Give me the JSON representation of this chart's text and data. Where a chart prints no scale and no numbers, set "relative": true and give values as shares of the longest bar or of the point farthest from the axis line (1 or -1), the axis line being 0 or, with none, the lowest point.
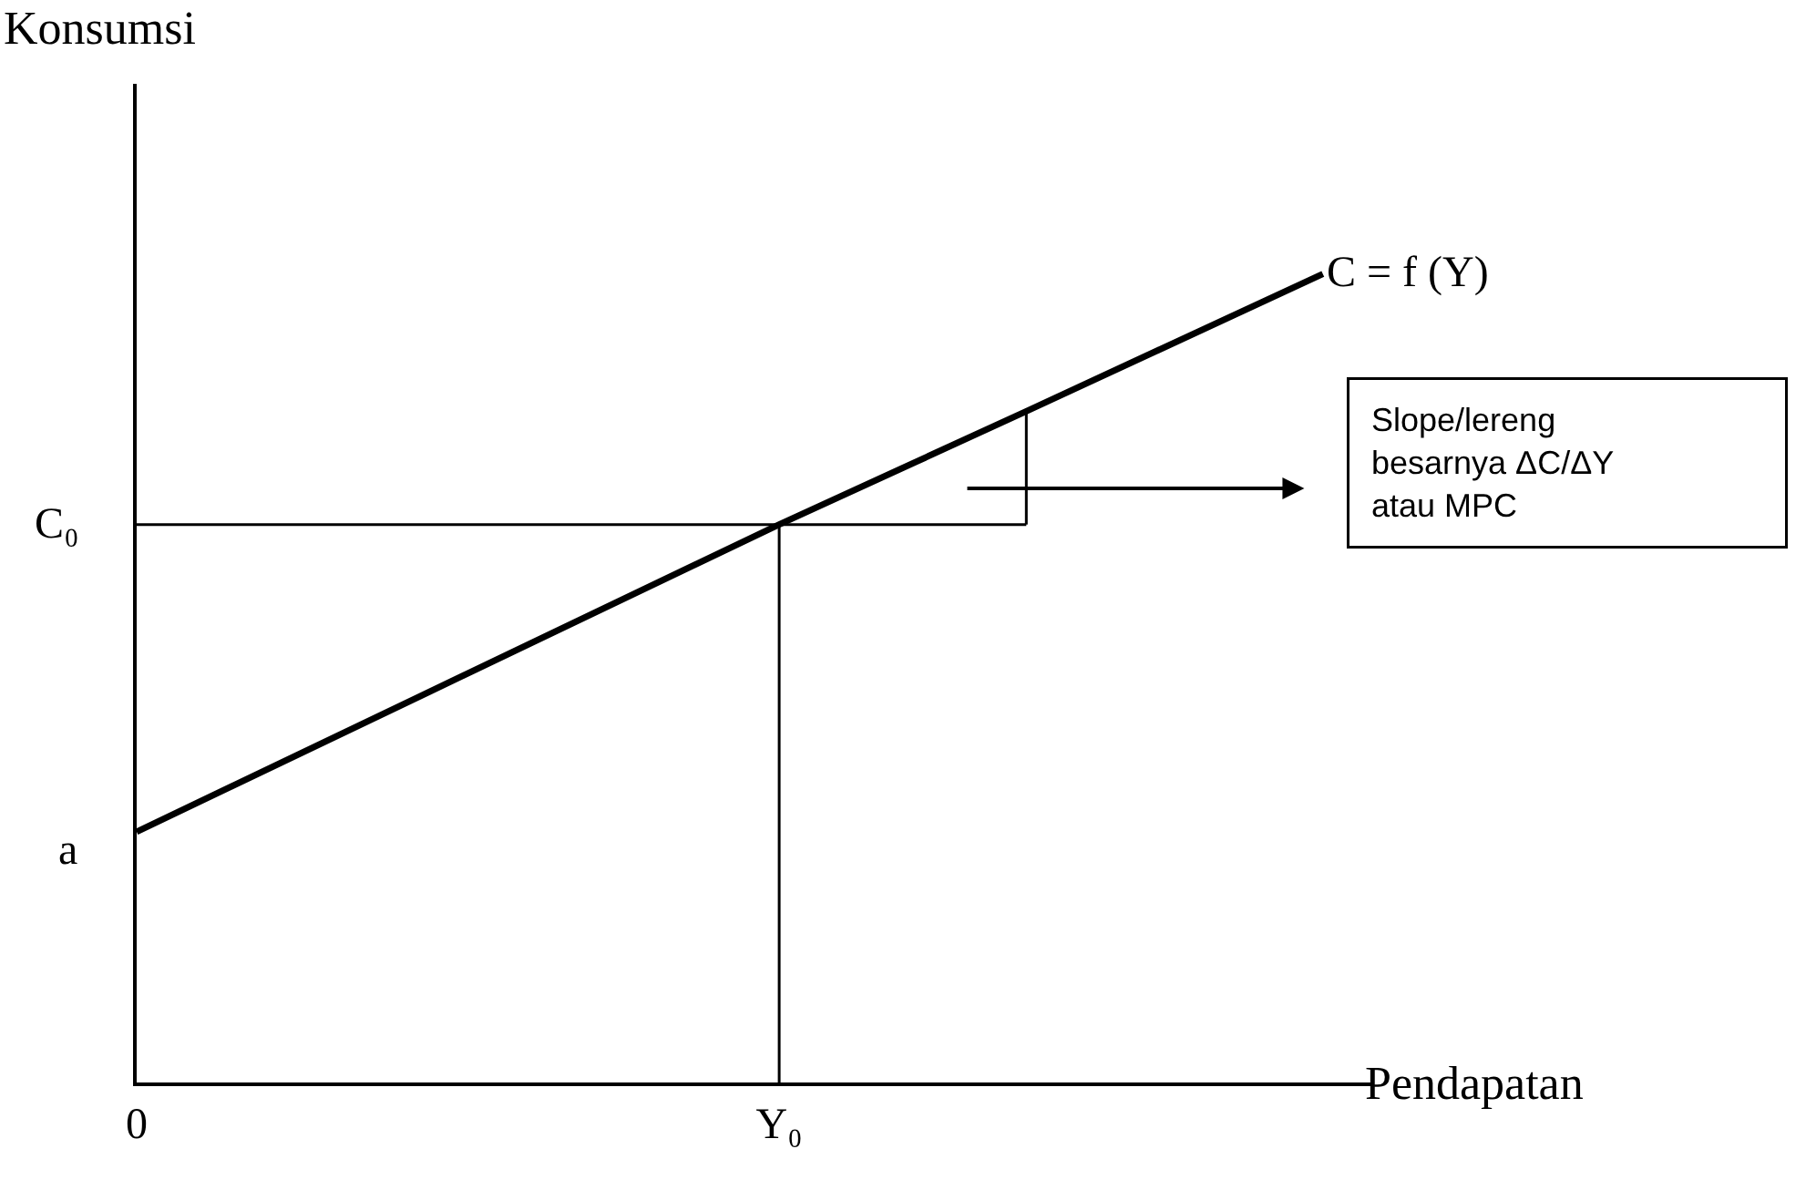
{
  "chart_data": {
    "type": "line",
    "relative": true,
    "xlabel": "Pendapatan",
    "ylabel": "Konsumsi",
    "legend": false,
    "categories": [
      "0",
      null,
      null,
      null,
      null,
      null,
      null,
      null,
      null,
      null,
      null,
      null,
      null,
      "Y₀",
      null,
      null,
      null,
      null,
      null,
      null,
      null,
      null,
      null,
      null,
      null
    ],
    "series": [
      {
        "name": "C = f (Y)",
        "color": "#000000",
        "values": [
          0.31,
          null,
          null,
          null,
          null,
          null,
          null,
          null,
          null,
          null,
          null,
          null,
          null,
          0.69,
          null,
          null,
          null,
          null,
          0.83,
          null,
          null,
          null,
          null,
          null,
          1
        ]
      }
    ],
    "ref_lines": [
      {
        "axis": "y",
        "value": 0.69,
        "label": "C₀"
      },
      {
        "axis": "x",
        "value": "Y₀"
      }
    ],
    "annotations": [
      "a",
      "Slope/lereng\nbesarnya ΔC/ΔY\natau MPC"
    ]
  }
}
